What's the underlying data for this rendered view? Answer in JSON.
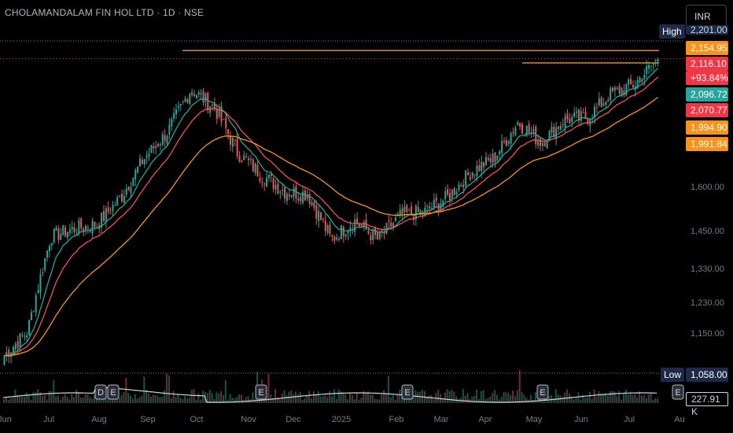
{
  "header": {
    "symbol_title": "CHOLAMANDALAM FIN HOL LTD · 1D · NSE",
    "currency_button": "INR"
  },
  "price_tags": {
    "high_label": "High",
    "high_value": "2,201.00",
    "low_label": "Low",
    "low_value": "1,058.00",
    "last_price": "2,116.10",
    "change_pct": "+93.84%",
    "resistance": "2,154.95",
    "support": "2,096.72",
    "ema_short": "2,070.77",
    "ema_mid": "1,994.90",
    "ema_long": "1,991.84",
    "volume": "227.91 K"
  },
  "colors": {
    "up": "#26a69a",
    "down": "#ef5350",
    "orange": "#f7931a",
    "green_tag": "#26a69a",
    "red_tag": "#f23645",
    "navy_tag": "#1e2a4a"
  },
  "chart_data": {
    "type": "candlestick",
    "title": "CHOLAMANDALAM FIN HOL LTD · 1D · NSE",
    "y_ticks": [
      "1,600.00",
      "1,450.00",
      "1,330.00",
      "1,230.00",
      "1,150.00"
    ],
    "y_tick_values": [
      1600,
      1450,
      1330,
      1230,
      1150
    ],
    "x_ticks": [
      "Jun",
      "Jul",
      "Aug",
      "Sep",
      "Oct",
      "Nov",
      "Dec",
      "2025",
      "Feb",
      "Mar",
      "Apr",
      "May",
      "Jun",
      "Jul",
      "Au"
    ],
    "ylim": [
      1058,
      2201
    ],
    "y_scale": "log",
    "close_anchors": [
      {
        "month": "Jun",
        "close": 1100
      },
      {
        "month": "Jul",
        "close": 1450
      },
      {
        "month": "Aug",
        "close": 1470
      },
      {
        "month": "Sep",
        "close": 1800
      },
      {
        "month": "Oct",
        "close": 1980
      },
      {
        "month": "Nov",
        "close": 1720
      },
      {
        "month": "Dec",
        "close": 1570
      },
      {
        "month": "2025",
        "close": 1420
      },
      {
        "month": "Feb",
        "close": 1500
      },
      {
        "month": "Mar",
        "close": 1650
      },
      {
        "month": "Apr",
        "close": 1840
      },
      {
        "month": "May",
        "close": 1850
      },
      {
        "month": "Jun",
        "close": 1960
      },
      {
        "month": "Jul",
        "close": 2116.1
      }
    ],
    "annotations": [
      {
        "type": "horizontal_line",
        "price": 2154.95,
        "label": "2,154.95"
      },
      {
        "type": "horizontal_line",
        "price": 2096.72,
        "label": "2,096.72"
      }
    ],
    "series": [
      {
        "name": "EMA",
        "value": 2070.77
      },
      {
        "name": "EMA",
        "value": 1994.9
      },
      {
        "name": "EMA",
        "value": 1991.84
      },
      {
        "name": "Volume",
        "value": "227.91 K"
      }
    ],
    "event_markers": [
      "D",
      "E",
      "E",
      "E",
      "E",
      "E"
    ]
  }
}
